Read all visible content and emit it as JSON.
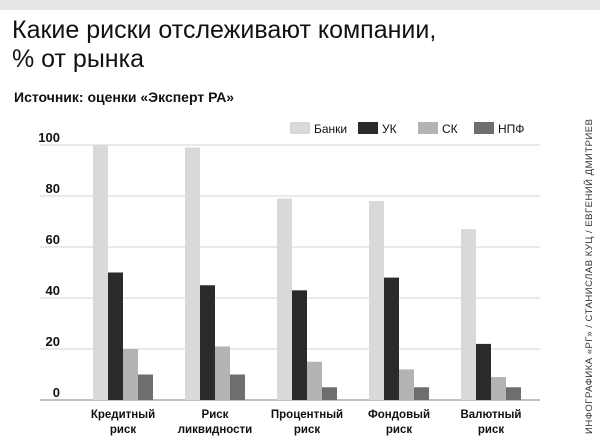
{
  "header": {
    "title_line1": "Какие риски отслеживают компании,",
    "title_line2": "% от рынка",
    "source": "Источник: оценки «Эксперт РА»"
  },
  "credit": "ИНФОГРАФИКА «РГ» / СТАНИСЛАВ КУЦ / ЕВГЕНИЙ ДМИТРИЕВ",
  "chart_data": {
    "type": "bar",
    "title": "Какие риски отслеживают компании, % от рынка",
    "categories": [
      [
        "Кредитный",
        "риск"
      ],
      [
        "Риск",
        "ликвидности"
      ],
      [
        "Процентный",
        "риск"
      ],
      [
        "Фондовый",
        "риск"
      ],
      [
        "Валютный",
        "риск"
      ]
    ],
    "series": [
      {
        "name": "Банки",
        "color": "#d9d9d9",
        "values": [
          100,
          99,
          79,
          78,
          67
        ]
      },
      {
        "name": "УК",
        "color": "#2a2a2a",
        "values": [
          50,
          45,
          43,
          48,
          22
        ]
      },
      {
        "name": "СК",
        "color": "#b3b3b3",
        "values": [
          20,
          21,
          15,
          12,
          9
        ]
      },
      {
        "name": "НПФ",
        "color": "#6e6e6e",
        "values": [
          10,
          10,
          5,
          5,
          5
        ]
      }
    ],
    "yticks": [
      0,
      20,
      40,
      60,
      80,
      100
    ],
    "ylim": [
      0,
      100
    ],
    "legend_position": "top-right",
    "grid": true
  }
}
